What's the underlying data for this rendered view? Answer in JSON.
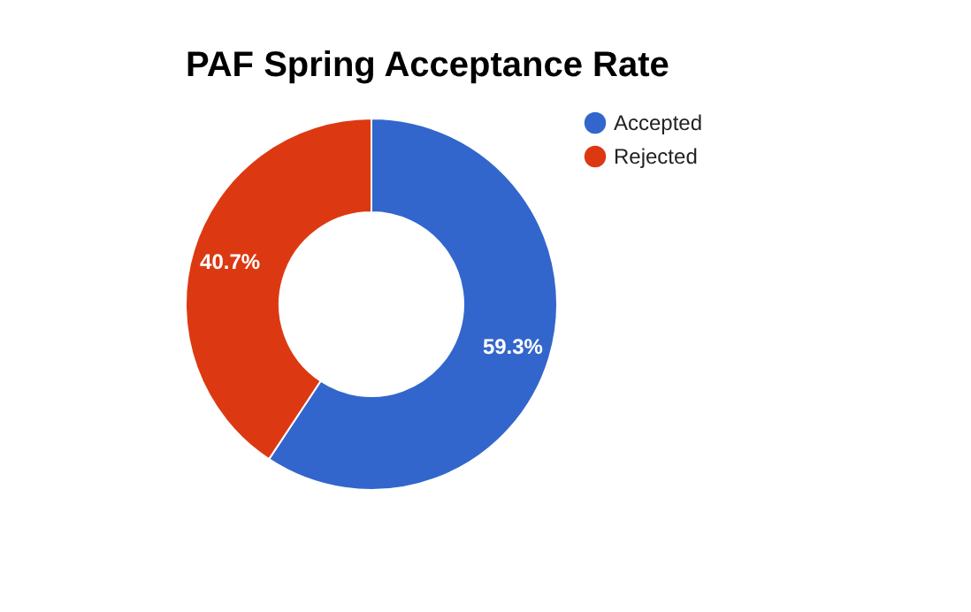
{
  "chart_data": {
    "type": "donut",
    "title": "PAF Spring Acceptance Rate",
    "categories": [
      "Accepted",
      "Rejected"
    ],
    "values": [
      59.3,
      40.7
    ],
    "colors": [
      "#3366cc",
      "#dc3912"
    ],
    "value_labels": [
      "59.3%",
      "40.7%"
    ],
    "legend": "right"
  }
}
